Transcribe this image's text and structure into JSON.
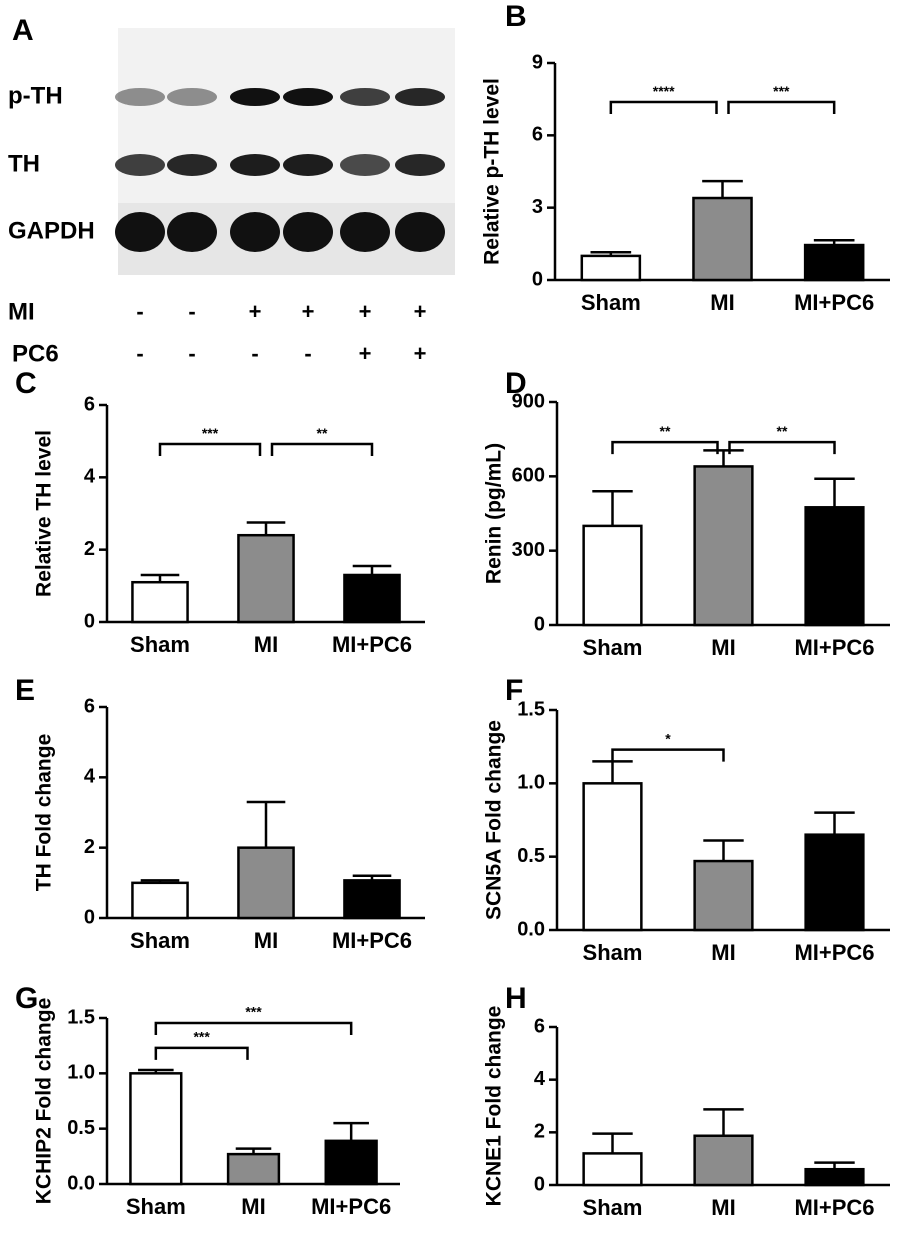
{
  "blot": {
    "panel": "A",
    "rows": [
      "p-TH",
      "TH",
      "GAPDH"
    ],
    "conditions": [
      {
        "name": "MI",
        "signs": [
          "-",
          "-",
          "+",
          "+",
          "+",
          "+"
        ]
      },
      {
        "name": "PC6",
        "signs": [
          "-",
          "-",
          "-",
          "-",
          "+",
          "+"
        ]
      }
    ]
  },
  "chart_data": [
    {
      "type": "bar",
      "panel": "B",
      "ylabel": "Relative p-TH level",
      "categories": [
        "Sham",
        "MI",
        "MI+PC6"
      ],
      "values": [
        1.0,
        3.4,
        1.45
      ],
      "errors": [
        0.15,
        0.7,
        0.2
      ],
      "colors": [
        "#ffffff",
        "#8c8c8c",
        "#000000"
      ],
      "ylim": [
        0,
        9
      ],
      "yticks": [
        0,
        3,
        6,
        9
      ],
      "annotations": [
        {
          "from": "Sham",
          "to": "MI",
          "label": "****"
        },
        {
          "from": "MI",
          "to": "MI+PC6",
          "label": "***"
        }
      ]
    },
    {
      "type": "bar",
      "panel": "C",
      "ylabel": "Relative TH level",
      "categories": [
        "Sham",
        "MI",
        "MI+PC6"
      ],
      "values": [
        1.1,
        2.4,
        1.3
      ],
      "errors": [
        0.2,
        0.35,
        0.25
      ],
      "colors": [
        "#ffffff",
        "#8c8c8c",
        "#000000"
      ],
      "ylim": [
        0,
        6
      ],
      "yticks": [
        0,
        2,
        4,
        6
      ],
      "annotations": [
        {
          "from": "Sham",
          "to": "MI",
          "label": "***"
        },
        {
          "from": "MI",
          "to": "MI+PC6",
          "label": "**"
        }
      ]
    },
    {
      "type": "bar",
      "panel": "D",
      "ylabel": "Renin (pg/mL)",
      "categories": [
        "Sham",
        "MI",
        "MI+PC6"
      ],
      "values": [
        400,
        640,
        475
      ],
      "errors": [
        140,
        65,
        115
      ],
      "colors": [
        "#ffffff",
        "#8c8c8c",
        "#000000"
      ],
      "ylim": [
        0,
        900
      ],
      "yticks": [
        0,
        300,
        600,
        900
      ],
      "annotations": [
        {
          "from": "Sham",
          "to": "MI",
          "label": "**"
        },
        {
          "from": "MI",
          "to": "MI+PC6",
          "label": "**"
        }
      ]
    },
    {
      "type": "bar",
      "panel": "E",
      "ylabel": "TH Fold change",
      "categories": [
        "Sham",
        "MI",
        "MI+PC6"
      ],
      "values": [
        1.0,
        2.0,
        1.07
      ],
      "errors": [
        0.07,
        1.3,
        0.13
      ],
      "colors": [
        "#ffffff",
        "#8c8c8c",
        "#000000"
      ],
      "ylim": [
        0,
        6
      ],
      "yticks": [
        0,
        2,
        4,
        6
      ],
      "annotations": []
    },
    {
      "type": "bar",
      "panel": "F",
      "ylabel": "SCN5A Fold change",
      "categories": [
        "Sham",
        "MI",
        "MI+PC6"
      ],
      "values": [
        1.0,
        0.47,
        0.65
      ],
      "errors": [
        0.15,
        0.14,
        0.15
      ],
      "colors": [
        "#ffffff",
        "#8c8c8c",
        "#000000"
      ],
      "ylim": [
        0,
        1.5
      ],
      "yticks": [
        {
          "value": 0,
          "label": "0.0"
        },
        0.5,
        {
          "value": 1,
          "label": "1.0"
        },
        1.5
      ],
      "annotations": [
        {
          "from": "Sham",
          "to": "MI",
          "label": "*"
        }
      ]
    },
    {
      "type": "bar",
      "panel": "G",
      "ylabel": "KCHIP2 Fold change",
      "categories": [
        "Sham",
        "MI",
        "MI+PC6"
      ],
      "values": [
        1.0,
        0.27,
        0.39
      ],
      "errors": [
        0.03,
        0.05,
        0.16
      ],
      "colors": [
        "#ffffff",
        "#8c8c8c",
        "#000000"
      ],
      "ylim": [
        0,
        1.5
      ],
      "yticks": [
        {
          "value": 0,
          "label": "0.0"
        },
        0.5,
        {
          "value": 1,
          "label": "1.0"
        },
        1.5
      ],
      "annotations": [
        {
          "from": "Sham",
          "to": "MI",
          "label": "***"
        },
        {
          "from": "Sham",
          "to": "MI+PC6",
          "label": "***"
        }
      ]
    },
    {
      "type": "bar",
      "panel": "H",
      "ylabel": "KCNE1 Fold change",
      "categories": [
        "Sham",
        "MI",
        "MI+PC6"
      ],
      "values": [
        1.2,
        1.87,
        0.6
      ],
      "errors": [
        0.75,
        1.0,
        0.25
      ],
      "colors": [
        "#ffffff",
        "#8c8c8c",
        "#000000"
      ],
      "ylim": [
        0,
        6
      ],
      "yticks": [
        0,
        2,
        4,
        6
      ],
      "annotations": []
    }
  ]
}
